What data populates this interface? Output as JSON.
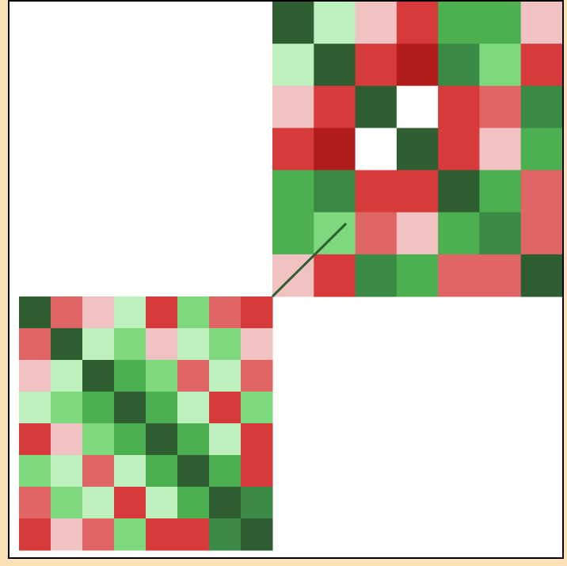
{
  "chart_data": {
    "type": "heatmap",
    "title": "",
    "xlabel": "",
    "ylabel": "",
    "grid": false,
    "legend": "none",
    "color_scale": {
      "low_to_high": [
        "#7a0000",
        "#b01c1c",
        "#d63a3a",
        "#e06666",
        "#f0c2c2",
        "#ffffff",
        "#bdf0bd",
        "#7ed87e",
        "#4caf50",
        "#3a8a46",
        "#2e5e32"
      ]
    },
    "panels": [
      {
        "name": "",
        "grid_size": [
          7,
          7
        ],
        "values": [
          [
            0.9,
            0.1,
            -0.3,
            -0.6,
            0.6,
            0.5,
            -0.2
          ],
          [
            0.1,
            0.9,
            -0.7,
            -0.8,
            0.8,
            0.4,
            -0.6
          ],
          [
            -0.3,
            -0.7,
            0.9,
            -0.1,
            -0.6,
            -0.5,
            0.7
          ],
          [
            -0.6,
            -0.8,
            -0.1,
            1.0,
            -0.7,
            -0.3,
            0.6
          ],
          [
            0.6,
            0.8,
            -0.6,
            -0.7,
            0.9,
            0.6,
            -0.5
          ],
          [
            0.5,
            0.4,
            -0.5,
            -0.3,
            0.6,
            0.8,
            -0.4
          ],
          [
            -0.2,
            -0.6,
            0.7,
            0.6,
            -0.5,
            -0.4,
            1.0
          ]
        ]
      },
      {
        "name": "",
        "grid_size": [
          8,
          8
        ],
        "values": [
          [
            0.9,
            -0.5,
            -0.3,
            0.1,
            -0.6,
            0.3,
            -0.4,
            -0.7
          ],
          [
            -0.5,
            0.9,
            0.2,
            0.4,
            -0.2,
            0.1,
            0.3,
            -0.3
          ],
          [
            -0.3,
            0.2,
            1.0,
            0.6,
            0.3,
            -0.4,
            0.2,
            -0.5
          ],
          [
            0.1,
            0.4,
            0.6,
            1.0,
            0.5,
            0.2,
            -0.6,
            0.3
          ],
          [
            -0.6,
            -0.2,
            0.3,
            0.5,
            1.0,
            0.6,
            0.1,
            -0.6
          ],
          [
            0.3,
            0.1,
            -0.4,
            0.2,
            0.6,
            1.0,
            0.5,
            -0.7
          ],
          [
            -0.4,
            0.3,
            0.2,
            -0.6,
            0.1,
            0.5,
            1.0,
            0.8
          ],
          [
            -0.7,
            -0.3,
            -0.5,
            0.3,
            -0.6,
            -0.7,
            0.8,
            1.0
          ]
        ]
      }
    ]
  }
}
